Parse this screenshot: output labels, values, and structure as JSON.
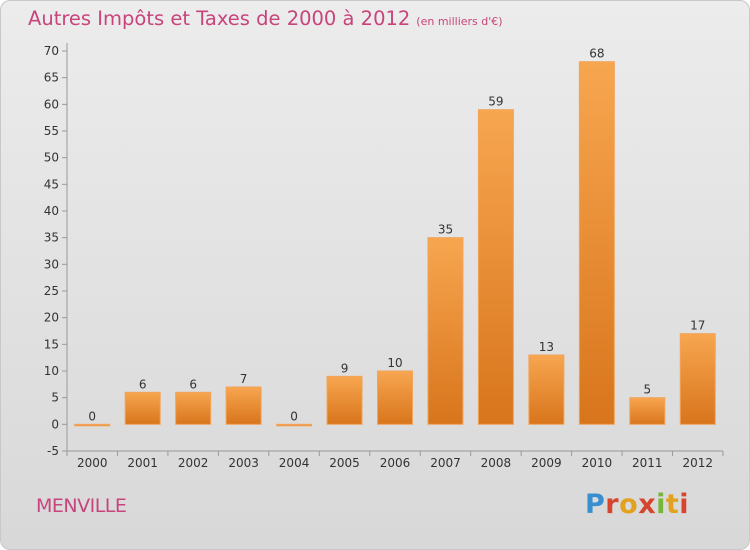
{
  "chart_data": {
    "type": "bar",
    "title": "Autres Impôts et Taxes de 2000 à 2012",
    "subtitle": "(en milliers d'€)",
    "categories": [
      "2000",
      "2001",
      "2002",
      "2003",
      "2004",
      "2005",
      "2006",
      "2007",
      "2008",
      "2009",
      "2010",
      "2011",
      "2012"
    ],
    "values": [
      0,
      6,
      6,
      7,
      0,
      9,
      10,
      35,
      59,
      13,
      68,
      5,
      17
    ],
    "value_labels": [
      "0",
      "6",
      "6",
      "7",
      "0",
      "9",
      "10",
      "35",
      "59",
      "13",
      "68",
      "5",
      "17"
    ],
    "ylim": [
      -5,
      70
    ],
    "yticks": [
      -5,
      0,
      5,
      10,
      15,
      20,
      25,
      30,
      35,
      40,
      45,
      50,
      55,
      60,
      65,
      70
    ],
    "ytick_labels": [
      "-5",
      "0",
      "5",
      "10",
      "15",
      "20",
      "25",
      "30",
      "35",
      "40",
      "45",
      "50",
      "55",
      "60",
      "65",
      "70"
    ],
    "grid": "none",
    "bar_color": "#f0a04b",
    "bar_color_dark": "#d6761c"
  },
  "commune": "MENVILLE",
  "logo": {
    "letters": [
      "P",
      "r",
      "o",
      "x",
      "i",
      "t",
      "i"
    ]
  }
}
